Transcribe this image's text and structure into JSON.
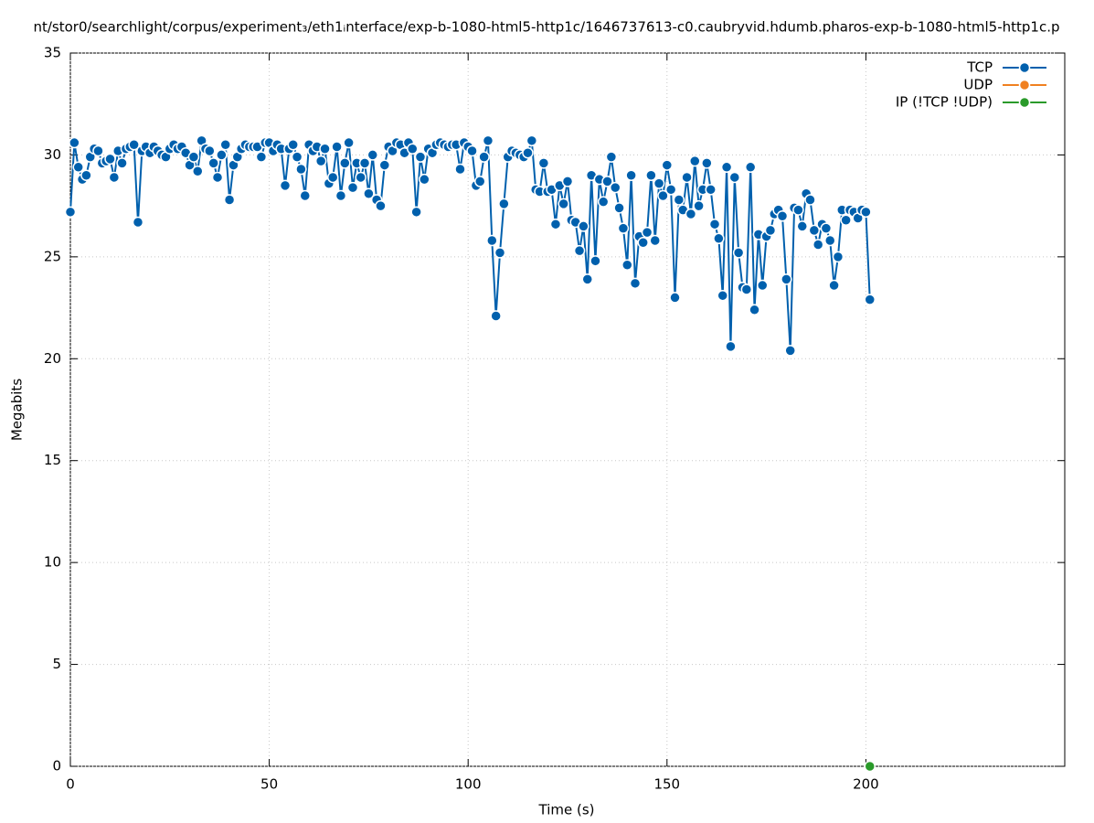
{
  "chart_data": {
    "type": "line",
    "title": "nt/stor0/searchlight/corpus/experiment₃/eth1ᵢnterface/exp-b-1080-html5-http1c/1646737613-c0.caubryvid.hdumb.pharos-exp-b-1080-html5-http1c.p",
    "x_label": "Time (s)",
    "y_label": "Megabits",
    "xlim": [
      0,
      250
    ],
    "xticks": [
      0,
      50,
      100,
      150,
      200
    ],
    "ylim": [
      0,
      35
    ],
    "yticks": [
      0,
      5,
      10,
      15,
      20,
      25,
      30,
      35
    ],
    "grid": true,
    "legend": "top-right",
    "series": [
      {
        "name": "TCP",
        "color": "#0060ad",
        "x": [
          0,
          1,
          2,
          3,
          4,
          5,
          6,
          7,
          8,
          9,
          10,
          11,
          12,
          13,
          14,
          15,
          16,
          17,
          18,
          19,
          20,
          21,
          22,
          23,
          24,
          25,
          26,
          27,
          28,
          29,
          30,
          31,
          32,
          33,
          34,
          35,
          36,
          37,
          38,
          39,
          40,
          41,
          42,
          43,
          44,
          45,
          46,
          47,
          48,
          49,
          50,
          51,
          52,
          53,
          54,
          55,
          56,
          57,
          58,
          59,
          60,
          61,
          62,
          63,
          64,
          65,
          66,
          67,
          68,
          69,
          70,
          71,
          72,
          73,
          74,
          75,
          76,
          77,
          78,
          79,
          80,
          81,
          82,
          83,
          84,
          85,
          86,
          87,
          88,
          89,
          90,
          91,
          92,
          93,
          94,
          95,
          96,
          97,
          98,
          99,
          100,
          101,
          102,
          103,
          104,
          105,
          106,
          107,
          108,
          109,
          110,
          111,
          112,
          113,
          114,
          115,
          116,
          117,
          118,
          119,
          120,
          121,
          122,
          123,
          124,
          125,
          126,
          127,
          128,
          129,
          130,
          131,
          132,
          133,
          134,
          135,
          136,
          137,
          138,
          139,
          140,
          141,
          142,
          143,
          144,
          145,
          146,
          147,
          148,
          149,
          150,
          151,
          152,
          153,
          154,
          155,
          156,
          157,
          158,
          159,
          160,
          161,
          162,
          163,
          164,
          165,
          166,
          167,
          168,
          169,
          170,
          171,
          172,
          173,
          174,
          175,
          176,
          177,
          178,
          179,
          180,
          181,
          182,
          183,
          184,
          185,
          186,
          187,
          188,
          189,
          190,
          191,
          192,
          193,
          194,
          195,
          196,
          197,
          198,
          199,
          200,
          201
        ],
        "values": [
          27.2,
          30.6,
          29.4,
          28.8,
          29.0,
          29.9,
          30.3,
          30.2,
          29.6,
          29.7,
          29.8,
          28.9,
          30.2,
          29.6,
          30.3,
          30.4,
          30.5,
          26.7,
          30.2,
          30.4,
          30.1,
          30.4,
          30.2,
          30.0,
          29.9,
          30.3,
          30.5,
          30.3,
          30.4,
          30.1,
          29.5,
          29.9,
          29.2,
          30.7,
          30.3,
          30.2,
          29.6,
          28.9,
          30.0,
          30.5,
          27.8,
          29.5,
          29.9,
          30.3,
          30.5,
          30.4,
          30.4,
          30.4,
          29.9,
          30.6,
          30.6,
          30.2,
          30.5,
          30.3,
          28.5,
          30.3,
          30.5,
          29.9,
          29.3,
          28.0,
          30.5,
          30.2,
          30.4,
          29.7,
          30.3,
          28.6,
          28.9,
          30.4,
          28.0,
          29.6,
          30.6,
          28.4,
          29.6,
          28.9,
          29.6,
          28.1,
          30.0,
          27.8,
          27.5,
          29.5,
          30.4,
          30.2,
          30.6,
          30.5,
          30.1,
          30.6,
          30.3,
          27.2,
          29.9,
          28.8,
          30.3,
          30.1,
          30.5,
          30.6,
          30.5,
          30.4,
          30.5,
          30.5,
          29.3,
          30.6,
          30.4,
          30.2,
          28.5,
          28.7,
          29.9,
          30.7,
          25.8,
          22.1,
          25.2,
          27.6,
          29.9,
          30.2,
          30.1,
          30.0,
          29.9,
          30.1,
          30.7,
          28.3,
          28.2,
          29.6,
          28.2,
          28.3,
          26.6,
          28.5,
          27.6,
          28.7,
          26.8,
          26.7,
          25.3,
          26.5,
          23.9,
          29.0,
          24.8,
          28.8,
          27.7,
          28.7,
          29.9,
          28.4,
          27.4,
          26.4,
          24.6,
          29.0,
          23.7,
          26.0,
          25.7,
          26.2,
          29.0,
          25.8,
          28.6,
          28.0,
          29.5,
          28.3,
          23.0,
          27.8,
          27.3,
          28.9,
          27.1,
          29.7,
          27.5,
          28.3,
          29.6,
          28.3,
          26.6,
          25.9,
          23.1,
          29.4,
          20.6,
          28.9,
          25.2,
          23.5,
          23.4,
          29.4,
          22.4,
          26.1,
          23.6,
          26.0,
          26.3,
          27.1,
          27.3,
          27.0,
          23.9,
          20.4,
          27.4,
          27.3,
          26.5,
          28.1,
          27.8,
          26.3,
          25.6,
          26.6,
          26.4,
          25.8,
          23.6,
          25.0,
          27.3,
          26.8,
          27.3,
          27.2,
          26.9,
          27.3,
          27.2,
          22.9
        ]
      },
      {
        "name": "UDP",
        "color": "#f08020",
        "x": [],
        "values": []
      },
      {
        "name": "IP (!TCP  !UDP)",
        "color": "#2a9a2a",
        "x": [
          201
        ],
        "values": [
          0
        ]
      }
    ]
  }
}
